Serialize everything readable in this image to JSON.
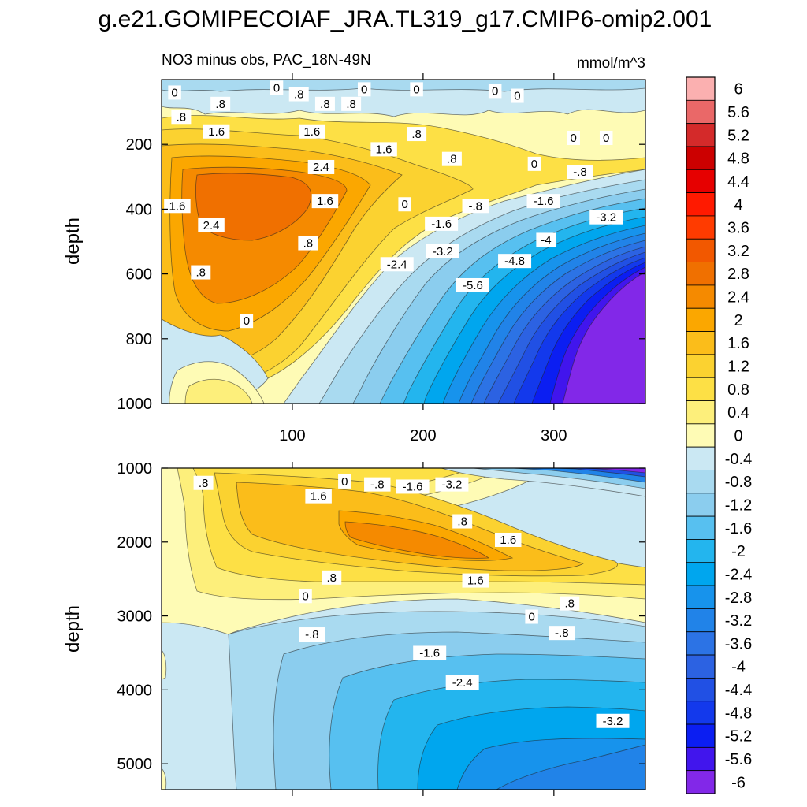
{
  "title": "g.e21.GOMIPECOIAF_JRA.TL319_g17.CMIP6-omip2.001",
  "chart_data": [
    {
      "type": "heatmap",
      "panel": "upper",
      "title": "NO3 minus obs, PAC_18N-49N",
      "units": "mmol/m^3",
      "ylabel": "depth",
      "xlabel": "",
      "xlim": [
        0,
        370
      ],
      "ylim": [
        1000,
        0
      ],
      "xticks": [
        "100",
        "200",
        "300"
      ],
      "yticks": [
        "200",
        "400",
        "600",
        "800",
        "1000"
      ],
      "contour_labels": [
        {
          "text": "0",
          "x": 10,
          "y": 40
        },
        {
          "text": "0",
          "x": 88,
          "y": 25
        },
        {
          "text": "0",
          "x": 155,
          "y": 30
        },
        {
          "text": "0",
          "x": 195,
          "y": 30
        },
        {
          "text": "0",
          "x": 255,
          "y": 35
        },
        {
          "text": "0",
          "x": 272,
          "y": 50
        },
        {
          "text": "0",
          "x": 315,
          "y": 180
        },
        {
          "text": "0",
          "x": 340,
          "y": 180
        },
        {
          "text": "0",
          "x": 285,
          "y": 260
        },
        {
          "text": "0",
          "x": 186,
          "y": 385
        },
        {
          "text": "0",
          "x": 65,
          "y": 745
        },
        {
          "text": ".8",
          "x": 105,
          "y": 45
        },
        {
          "text": ".8",
          "x": 125,
          "y": 75
        },
        {
          "text": ".8",
          "x": 145,
          "y": 75
        },
        {
          "text": ".8",
          "x": 45,
          "y": 75
        },
        {
          "text": ".8",
          "x": 15,
          "y": 115
        },
        {
          "text": ".8",
          "x": 195,
          "y": 168
        },
        {
          "text": ".8",
          "x": 222,
          "y": 245
        },
        {
          "text": ".8",
          "x": 112,
          "y": 505
        },
        {
          "text": ".8",
          "x": 30,
          "y": 595
        },
        {
          "text": "-.8",
          "x": 320,
          "y": 285
        },
        {
          "text": "-.8",
          "x": 240,
          "y": 390
        },
        {
          "text": "1.6",
          "x": 42,
          "y": 160
        },
        {
          "text": "1.6",
          "x": 115,
          "y": 160
        },
        {
          "text": "1.6",
          "x": 170,
          "y": 215
        },
        {
          "text": "1.6",
          "x": 12,
          "y": 390
        },
        {
          "text": "1.6",
          "x": 125,
          "y": 375
        },
        {
          "text": "-1.6",
          "x": 214,
          "y": 445
        },
        {
          "text": "-1.6",
          "x": 292,
          "y": 375
        },
        {
          "text": "2.4",
          "x": 122,
          "y": 270
        },
        {
          "text": "2.4",
          "x": 38,
          "y": 450
        },
        {
          "text": "-2.4",
          "x": 180,
          "y": 570
        },
        {
          "text": "-3.2",
          "x": 215,
          "y": 530
        },
        {
          "text": "-3.2",
          "x": 340,
          "y": 425
        },
        {
          "text": "-4",
          "x": 294,
          "y": 495
        },
        {
          "text": "-4.8",
          "x": 270,
          "y": 560
        },
        {
          "text": "-5.6",
          "x": 238,
          "y": 635
        }
      ]
    },
    {
      "type": "heatmap",
      "panel": "lower",
      "title": "",
      "ylabel": "depth",
      "xlabel": "",
      "xlim": [
        0,
        370
      ],
      "ylim": [
        5350,
        1000
      ],
      "xticks": [],
      "yticks": [
        "1000",
        "2000",
        "3000",
        "4000",
        "5000"
      ],
      "contour_labels": [
        {
          "text": ".8",
          "x": 32,
          "y": 1200
        },
        {
          "text": "0",
          "x": 140,
          "y": 1180
        },
        {
          "text": "-.8",
          "x": 165,
          "y": 1220
        },
        {
          "text": "-1.6",
          "x": 192,
          "y": 1250
        },
        {
          "text": "-3.2",
          "x": 222,
          "y": 1220
        },
        {
          "text": "1.6",
          "x": 120,
          "y": 1380
        },
        {
          "text": ".8",
          "x": 230,
          "y": 1720
        },
        {
          "text": "1.6",
          "x": 265,
          "y": 1970
        },
        {
          "text": ".8",
          "x": 130,
          "y": 2480
        },
        {
          "text": "1.6",
          "x": 240,
          "y": 2520
        },
        {
          "text": "0",
          "x": 110,
          "y": 2730
        },
        {
          "text": ".8",
          "x": 312,
          "y": 2830
        },
        {
          "text": "0",
          "x": 283,
          "y": 3010
        },
        {
          "text": "-.8",
          "x": 115,
          "y": 3250
        },
        {
          "text": "-.8",
          "x": 306,
          "y": 3230
        },
        {
          "text": "-1.6",
          "x": 205,
          "y": 3500
        },
        {
          "text": "-2.4",
          "x": 230,
          "y": 3900
        },
        {
          "text": "-3.2",
          "x": 345,
          "y": 4420
        }
      ]
    }
  ],
  "colorbar": {
    "labels": [
      "6",
      "5.6",
      "5.2",
      "4.8",
      "4.4",
      "4",
      "3.6",
      "3.2",
      "2.8",
      "2.4",
      "2",
      "1.6",
      "1.2",
      "0.8",
      "0.4",
      "0",
      "-0.4",
      "-0.8",
      "-1.2",
      "-1.6",
      "-2",
      "-2.4",
      "-2.8",
      "-3.2",
      "-3.6",
      "-4",
      "-4.4",
      "-4.8",
      "-5.2",
      "-5.6",
      "-6"
    ],
    "colors": [
      "#fbb0b0",
      "#ea6868",
      "#d42a2a",
      "#cc0000",
      "#e60000",
      "#ff1a00",
      "#ff3b00",
      "#f25800",
      "#f07000",
      "#f58a00",
      "#fba700",
      "#fbbd1a",
      "#fbd230",
      "#fde045",
      "#fdef7b",
      "#fefbb5",
      "#cbe8f3",
      "#a9daf0",
      "#8bcdee",
      "#57c0f0",
      "#23b5ee",
      "#00a6ee",
      "#1793ec",
      "#2183e8",
      "#2c73e5",
      "#2c62e2",
      "#2150e4",
      "#1339ec",
      "#0b1ef2",
      "#4115ed",
      "#8228e8"
    ]
  }
}
